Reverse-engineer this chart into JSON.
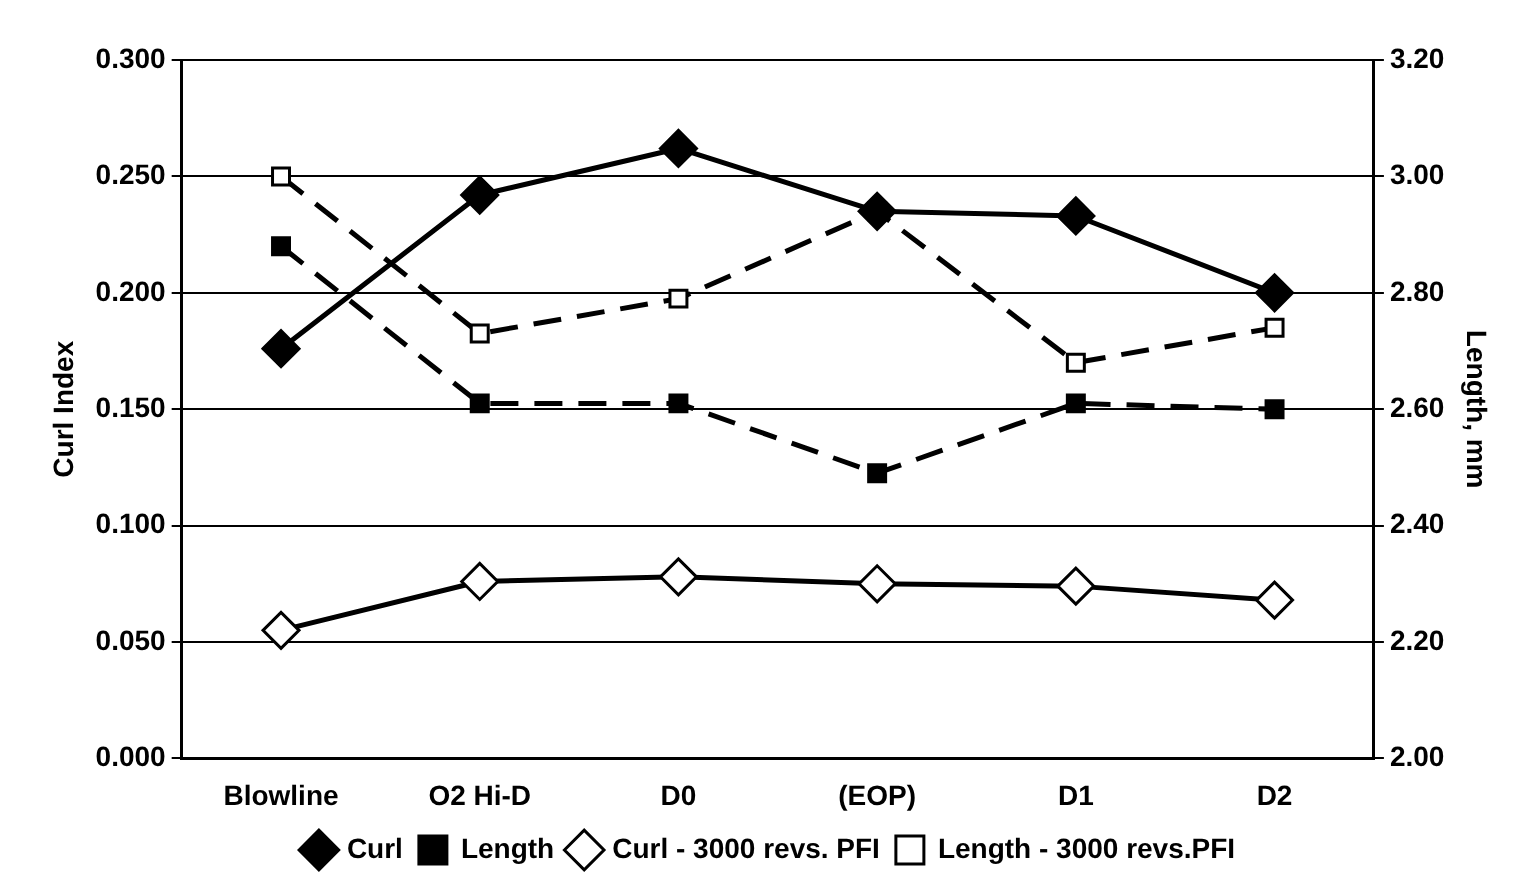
{
  "chart_data": {
    "type": "line",
    "ylabel": "Curl Index",
    "y2label": "Length, mm",
    "categories": [
      "Blowline",
      "O2 Hi-D",
      "D0",
      "(EOP)",
      "D1",
      "D2"
    ],
    "series": [
      {
        "name": "Curl",
        "color": "#000000",
        "marker": "diamond",
        "line_style": "solid",
        "values": [
          0.176,
          0.242,
          0.262,
          0.235,
          0.233,
          0.2
        ]
      },
      {
        "name": "Length",
        "color": "#000000",
        "marker": "square",
        "line_style": "dashed",
        "axis": "y2",
        "values": [
          2.88,
          2.61,
          2.61,
          2.49,
          2.61,
          2.6
        ]
      },
      {
        "name": "Curl - 3000 revs. PFI",
        "color": "#000000",
        "colors": [
          "#ffffff",
          "#ffffff",
          "#ffffff",
          "#ffffff",
          "#ffffff",
          "#ffffff"
        ],
        "marker": "diamond",
        "line_style": "solid",
        "values": [
          0.055,
          0.076,
          0.078,
          0.075,
          0.074,
          0.068
        ]
      },
      {
        "name": "Length - 3000 revs.PFI",
        "color": "#000000",
        "colors": [
          "#ffffff",
          "#ffffff",
          "#ffffff",
          "#ffffff",
          "#ffffff",
          "#ffffff"
        ],
        "marker": "square",
        "line_style": "dashed",
        "axis": "y2",
        "values": [
          3.0,
          2.73,
          2.79,
          2.94,
          2.68,
          2.74
        ]
      }
    ],
    "ylim": [
      0,
      0.3
    ],
    "yticks": [
      {
        "value": 0,
        "label": "0.000"
      },
      {
        "value": 0.05,
        "label": "0.050"
      },
      {
        "value": 0.1,
        "label": "0.100"
      },
      {
        "value": 0.15,
        "label": "0.150"
      },
      {
        "value": 0.2,
        "label": "0.200"
      },
      {
        "value": 0.25,
        "label": "0.250"
      },
      {
        "value": 0.3,
        "label": "0.300"
      }
    ],
    "y2lim": [
      2.0,
      3.2
    ],
    "y2ticks": [
      {
        "value": 2.0,
        "label": "2.00"
      },
      {
        "value": 2.2,
        "label": "2.20"
      },
      {
        "value": 2.4,
        "label": "2.40"
      },
      {
        "value": 2.6,
        "label": "2.60"
      },
      {
        "value": 2.8,
        "label": "2.80"
      },
      {
        "value": 3.0,
        "label": "3.00"
      },
      {
        "value": 3.2,
        "label": "3.20"
      }
    ],
    "grid": "y",
    "legend": "bottom"
  }
}
